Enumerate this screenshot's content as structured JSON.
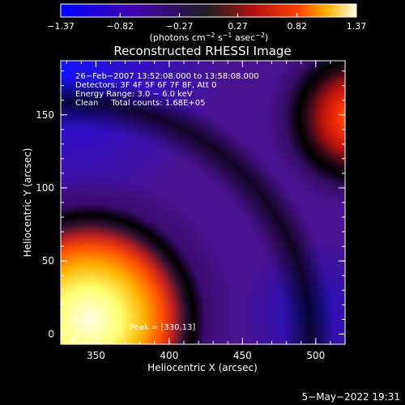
{
  "chart_data": {
    "type": "heatmap",
    "title": "Reconstructed RHESSI Image",
    "xlabel": "Heliocentric X (arcsec)",
    "ylabel": "Heliocentric Y (arcsec)",
    "xlim": [
      326,
      520
    ],
    "ylim": [
      -7,
      187
    ],
    "x_ticks": [
      "350",
      "400",
      "450",
      "500"
    ],
    "y_ticks": [
      "0",
      "50",
      "100",
      "150"
    ],
    "colorbar": {
      "ticks": [
        "−1.37",
        "−0.82",
        "−0.27",
        "0.27",
        "0.82",
        "1.37"
      ],
      "units_text": "(photons cm",
      "units_sup1": "−2",
      "units_mid": " s",
      "units_sup2": "−1",
      "units_mid2": " asec",
      "units_sup3": "−2",
      "units_end": ")",
      "range": [
        -1.37,
        1.37
      ]
    },
    "annotations": [
      "26−Feb−2007 13:52:08.000 to 13:58:08.000",
      "Detectors: 3F 4F 5F 6F 7F 8F, Att 0",
      "Energy Range: 3.0 − 6.0 keV",
      "Clean     Total counts: 1.68E+05"
    ],
    "peak_label": "Peak = [330,13]",
    "sources": [
      {
        "name": "lower-left source",
        "x": 332,
        "y": 10,
        "peak": 1.37
      },
      {
        "name": "upper-right source",
        "x": 520,
        "y": 150,
        "peak": 0.9
      }
    ]
  },
  "footer": {
    "timestamp": "5−May−2022 19:31"
  }
}
